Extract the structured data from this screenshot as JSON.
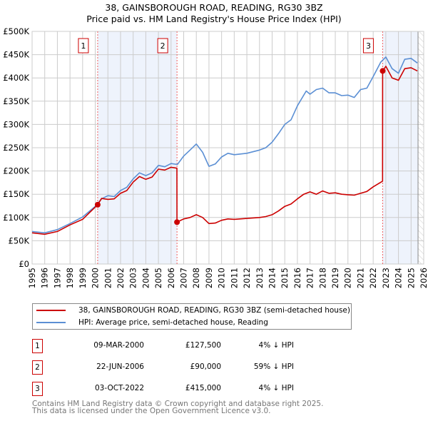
{
  "chart_data": {
    "type": "line",
    "title": "38, GAINSBOROUGH ROAD, READING, RG30 3BZ",
    "subtitle": "Price paid vs. HM Land Registry's House Price Index (HPI)",
    "xlim": [
      1995,
      2026
    ],
    "ylim": [
      0,
      500000
    ],
    "y_ticks": [
      {
        "v": 0,
        "label": "£0"
      },
      {
        "v": 50000,
        "label": "£50K"
      },
      {
        "v": 100000,
        "label": "£100K"
      },
      {
        "v": 150000,
        "label": "£150K"
      },
      {
        "v": 200000,
        "label": "£200K"
      },
      {
        "v": 250000,
        "label": "£250K"
      },
      {
        "v": 300000,
        "label": "£300K"
      },
      {
        "v": 350000,
        "label": "£350K"
      },
      {
        "v": 400000,
        "label": "£400K"
      },
      {
        "v": 450000,
        "label": "£450K"
      },
      {
        "v": 500000,
        "label": "£500K"
      }
    ],
    "x_ticks": [
      "1995",
      "1996",
      "1997",
      "1998",
      "1999",
      "2000",
      "2001",
      "2002",
      "2003",
      "2004",
      "2005",
      "2006",
      "2007",
      "2008",
      "2009",
      "2010",
      "2011",
      "2012",
      "2013",
      "2014",
      "2015",
      "2016",
      "2017",
      "2018",
      "2019",
      "2020",
      "2021",
      "2022",
      "2023",
      "2024",
      "2025",
      "2026"
    ],
    "grid": true,
    "shaded_ranges": [
      [
        2000.19,
        2006.47
      ],
      [
        2022.75,
        2025.55
      ]
    ],
    "forecast_hatch_from": 2025.55,
    "series": [
      {
        "name": "38, GAINSBOROUGH ROAD, READING, RG30 3BZ (semi-detached house)",
        "color": "#cc0000",
        "x": [
          1995,
          1996,
          1997,
          1998,
          1999,
          2000.19,
          2000.5,
          2001,
          2001.5,
          2002,
          2002.5,
          2003,
          2003.5,
          2004,
          2004.5,
          2005,
          2005.5,
          2006,
          2006.46,
          2006.47,
          2007,
          2007.5,
          2008,
          2008.5,
          2009,
          2009.5,
          2010,
          2010.5,
          2011,
          2012,
          2013,
          2013.5,
          2014,
          2014.5,
          2015,
          2015.5,
          2016,
          2016.5,
          2017,
          2017.5,
          2018,
          2018.5,
          2019,
          2019.5,
          2020,
          2020.5,
          2021,
          2021.5,
          2022,
          2022.74,
          2022.75,
          2023,
          2023.5,
          2024,
          2024.5,
          2025,
          2025.5
        ],
        "values": [
          67000,
          64000,
          70000,
          84000,
          96000,
          127500,
          141000,
          139000,
          140000,
          152000,
          158000,
          176000,
          188000,
          182000,
          187000,
          204000,
          202000,
          208000,
          206000,
          90000,
          97000,
          100000,
          106000,
          100000,
          87000,
          88000,
          94000,
          97000,
          96000,
          98000,
          100000,
          102000,
          106000,
          114000,
          124000,
          129000,
          140000,
          150000,
          155000,
          150000,
          157000,
          152000,
          153000,
          150000,
          149000,
          148000,
          152000,
          156000,
          166000,
          178000,
          415000,
          425000,
          400000,
          395000,
          420000,
          422000,
          415000
        ]
      },
      {
        "name": "HPI: Average price, semi-detached house, Reading",
        "color": "#5b8fd4",
        "x": [
          1995,
          1996,
          1997,
          1998,
          1999,
          2000,
          2000.5,
          2001,
          2001.5,
          2002,
          2002.5,
          2003,
          2003.5,
          2004,
          2004.5,
          2005,
          2005.5,
          2006,
          2006.5,
          2007,
          2007.5,
          2008,
          2008.5,
          2009,
          2009.5,
          2010,
          2010.5,
          2011,
          2012,
          2013,
          2013.5,
          2014,
          2014.5,
          2015,
          2015.5,
          2016,
          2016.7,
          2017,
          2017.5,
          2018,
          2018.5,
          2019,
          2019.5,
          2020,
          2020.5,
          2021,
          2021.5,
          2022,
          2022.6,
          2023,
          2023.5,
          2024,
          2024.5,
          2025,
          2025.5
        ],
        "values": [
          70000,
          67000,
          74000,
          87000,
          101000,
          124000,
          140000,
          147000,
          145000,
          158000,
          165000,
          183000,
          196000,
          190000,
          196000,
          212000,
          209000,
          216000,
          214000,
          232000,
          245000,
          258000,
          240000,
          210000,
          215000,
          230000,
          238000,
          235000,
          238000,
          245000,
          250000,
          262000,
          280000,
          300000,
          310000,
          340000,
          372000,
          365000,
          375000,
          378000,
          368000,
          368000,
          362000,
          363000,
          358000,
          375000,
          378000,
          403000,
          434000,
          445000,
          420000,
          410000,
          440000,
          442000,
          432000
        ]
      }
    ],
    "sales": [
      {
        "label": "1",
        "x": 2000.19,
        "value": 127500
      },
      {
        "label": "2",
        "x": 2006.47,
        "value": 90000
      },
      {
        "label": "3",
        "x": 2022.75,
        "value": 415000
      }
    ]
  },
  "legend": {
    "items": [
      "38, GAINSBOROUGH ROAD, READING, RG30 3BZ (semi-detached house)",
      "HPI: Average price, semi-detached house, Reading"
    ]
  },
  "table": [
    {
      "num": "1",
      "date": "09-MAR-2000",
      "price": "£127,500",
      "hpi": "4% ↓ HPI"
    },
    {
      "num": "2",
      "date": "22-JUN-2006",
      "price": "£90,000",
      "hpi": "59% ↓ HPI"
    },
    {
      "num": "3",
      "date": "03-OCT-2022",
      "price": "£415,000",
      "hpi": "4% ↓ HPI"
    }
  ],
  "footer": {
    "line1": "Contains HM Land Registry data © Crown copyright and database right 2025.",
    "line2": "This data is licensed under the Open Government Licence v3.0."
  }
}
